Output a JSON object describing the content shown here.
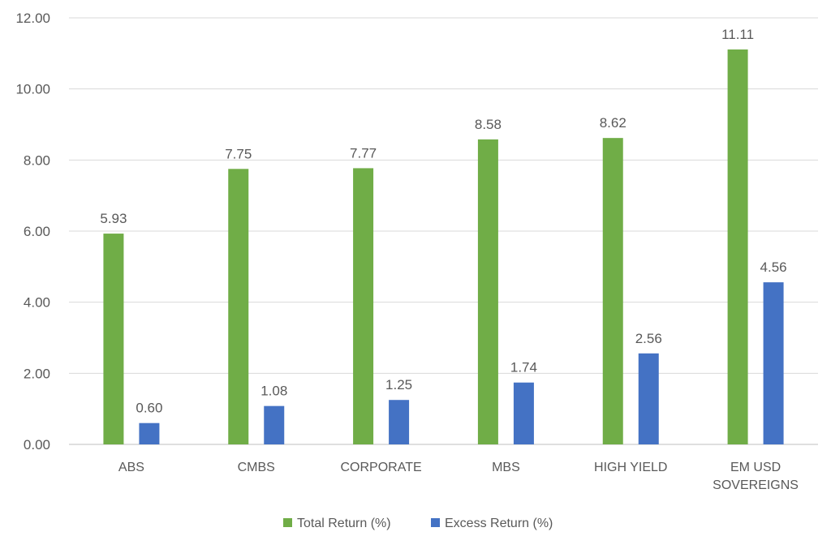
{
  "chart_data": {
    "type": "bar",
    "title": "",
    "xlabel": "",
    "ylabel": "",
    "categories": [
      [
        "ABS"
      ],
      [
        "CMBS"
      ],
      [
        "CORPORATE"
      ],
      [
        "MBS"
      ],
      [
        "HIGH YIELD"
      ],
      [
        "EM USD",
        "SOVEREIGNS"
      ]
    ],
    "series": [
      {
        "name": "Total Return (%)",
        "color": "#70ad47",
        "values": [
          5.93,
          7.75,
          7.77,
          8.58,
          8.62,
          11.11
        ],
        "labels": [
          "5.93",
          "7.75",
          "7.77",
          "8.58",
          "8.62",
          "11.11"
        ]
      },
      {
        "name": "Excess Return (%)",
        "color": "#4472c4",
        "values": [
          0.6,
          1.08,
          1.25,
          1.74,
          2.56,
          4.56
        ],
        "labels": [
          "0.60",
          "1.08",
          "1.25",
          "1.74",
          "2.56",
          "4.56"
        ]
      }
    ],
    "ylim": [
      0,
      12
    ],
    "yticks": [
      0,
      2,
      4,
      6,
      8,
      10,
      12
    ],
    "ytick_labels": [
      "0.00",
      "2.00",
      "4.00",
      "6.00",
      "8.00",
      "10.00",
      "12.00"
    ],
    "grid": true,
    "legend_position": "bottom"
  }
}
